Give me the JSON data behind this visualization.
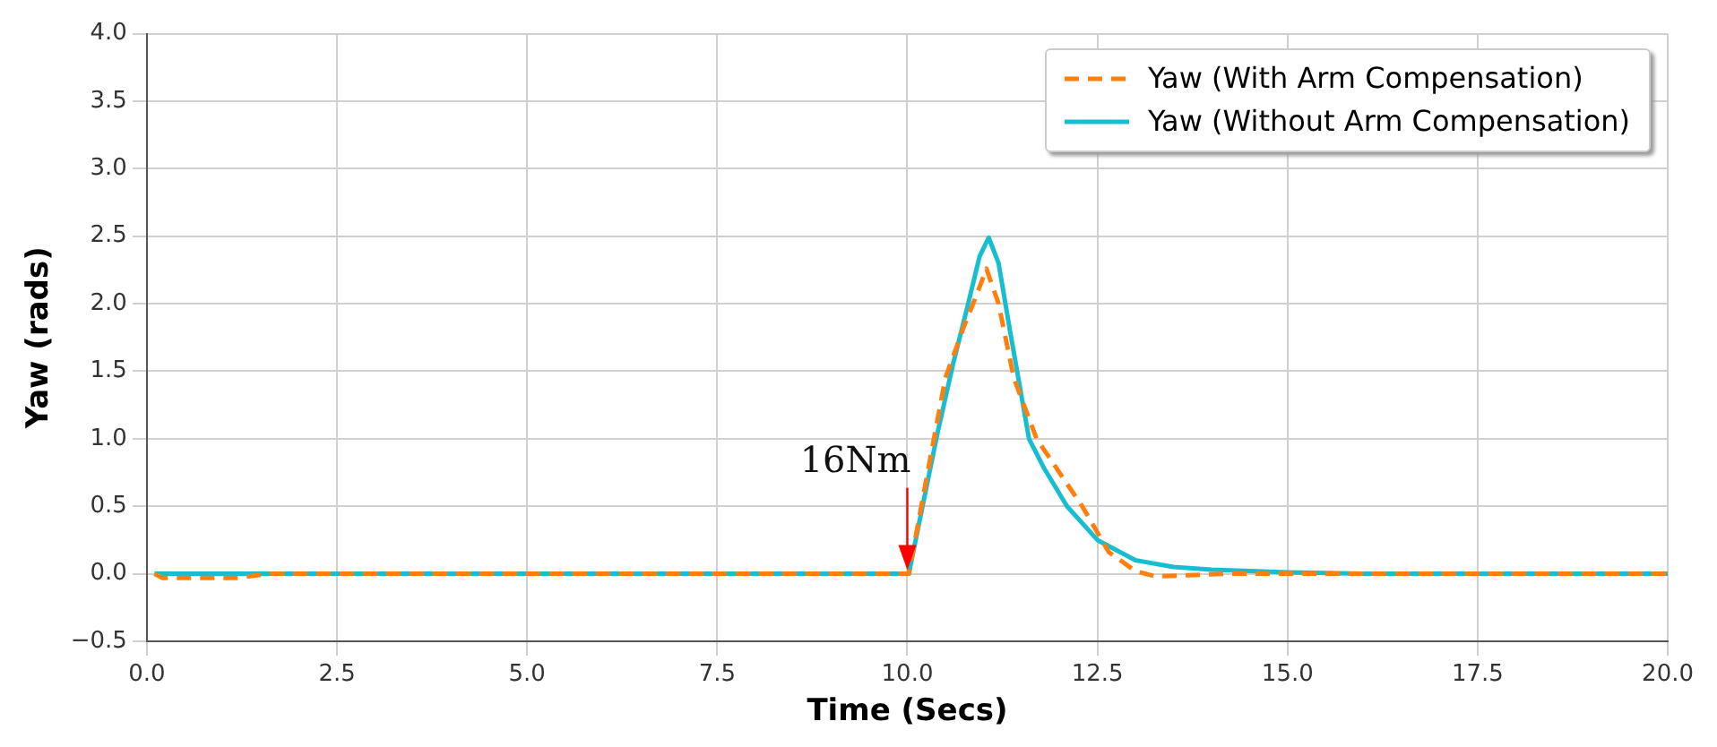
{
  "chart_data": {
    "type": "line",
    "xlabel": "Time (Secs)",
    "ylabel": "Yaw (rads)",
    "xlim": [
      0,
      20
    ],
    "ylim": [
      -0.5,
      4
    ],
    "xticks": [
      {
        "value": 0,
        "label": "0.0"
      },
      {
        "value": 2.5,
        "label": "2.5"
      },
      {
        "value": 5,
        "label": "5.0"
      },
      {
        "value": 7.5,
        "label": "7.5"
      },
      {
        "value": 10,
        "label": "10.0"
      },
      {
        "value": 12.5,
        "label": "12.5"
      },
      {
        "value": 15,
        "label": "15.0"
      },
      {
        "value": 17.5,
        "label": "17.5"
      },
      {
        "value": 20,
        "label": "20.0"
      }
    ],
    "yticks": [
      {
        "value": -0.5,
        "label": "−0.5"
      },
      {
        "value": 0,
        "label": "0.0"
      },
      {
        "value": 0.5,
        "label": "0.5"
      },
      {
        "value": 1,
        "label": "1.0"
      },
      {
        "value": 1.5,
        "label": "1.5"
      },
      {
        "value": 2,
        "label": "2.0"
      },
      {
        "value": 2.5,
        "label": "2.5"
      },
      {
        "value": 3,
        "label": "3.0"
      },
      {
        "value": 3.5,
        "label": "3.5"
      },
      {
        "value": 4,
        "label": "4.0"
      }
    ],
    "grid": true,
    "legend": "top right",
    "marker": "none",
    "annotations": [
      {
        "text": "16Nm",
        "x": 10,
        "y": 0
      }
    ],
    "series": [
      {
        "name": "Yaw (With Arm Compensation)",
        "color": "#ff7f0e",
        "line_style": "dashed",
        "x": [
          0.1,
          0.2,
          1.2,
          1.6,
          10,
          10.02,
          10.2,
          10.5,
          10.75,
          10.9,
          11.04,
          11.2,
          11.4,
          11.7,
          12,
          12.3,
          12.65,
          13,
          13.27,
          13.7,
          14.2,
          20
        ],
        "values": [
          0,
          -0.03,
          -0.03,
          0,
          0,
          0,
          0.55,
          1.45,
          1.84,
          2.05,
          2.26,
          2,
          1.45,
          1,
          0.75,
          0.5,
          0.16,
          0.02,
          -0.02,
          -0.01,
          0,
          0
        ]
      },
      {
        "name": "Yaw (Without Arm Compensation)",
        "color": "#17becf",
        "line_style": "solid",
        "x": [
          0.1,
          10,
          10.02,
          10.2,
          10.4,
          10.6,
          10.8,
          10.95,
          11.07,
          11.2,
          11.35,
          11.6,
          11.8,
          12.1,
          12.5,
          13,
          13.5,
          14,
          15,
          16,
          20
        ],
        "values": [
          0,
          0,
          0,
          0.5,
          1.05,
          1.55,
          2,
          2.35,
          2.49,
          2.3,
          1.8,
          1,
          0.78,
          0.5,
          0.25,
          0.1,
          0.05,
          0.03,
          0.01,
          0,
          0
        ]
      }
    ]
  }
}
